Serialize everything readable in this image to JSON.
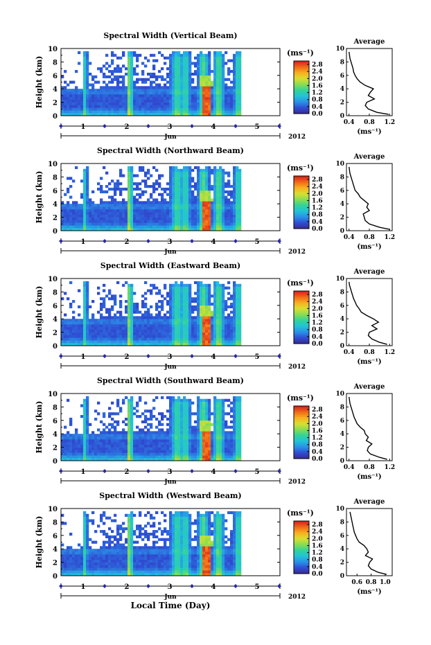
{
  "chart_data": [
    {
      "type": "heatmap",
      "title": "Spectral Width (Vertical Beam)",
      "ylabel": "Height (km)",
      "yticks": [
        "0",
        "2",
        "4",
        "6",
        "8",
        "10"
      ],
      "xticks": [
        "1",
        "2",
        "3",
        "4",
        "5"
      ],
      "month_label": "Jun",
      "year_label": "2012",
      "colorbar": {
        "unit": "(ms⁻¹)",
        "ticks": [
          "0.0",
          "0.4",
          "0.8",
          "1.2",
          "1.6",
          "2.0",
          "2.4",
          "2.8"
        ],
        "range": [
          0,
          3.0
        ]
      },
      "average": {
        "title": "Average",
        "xlabel": "(ms⁻¹)",
        "xticks": [
          "0.4",
          "0.8",
          "1.2"
        ],
        "xlim": [
          0.35,
          1.25
        ],
        "yticks": [
          "0",
          "2",
          "4",
          "6",
          "8",
          "10"
        ],
        "height": [
          0.2,
          0.5,
          1,
          1.5,
          2,
          2.5,
          3,
          3.5,
          4,
          4.5,
          5,
          5.5,
          6,
          6.5,
          7,
          7.5,
          8,
          8.5,
          9,
          9.5
        ],
        "width": [
          1.18,
          0.95,
          0.78,
          0.72,
          0.75,
          0.9,
          0.78,
          0.82,
          0.88,
          0.72,
          0.62,
          0.56,
          0.52,
          0.49,
          0.48,
          0.46,
          0.44,
          0.42,
          0.41,
          0.4
        ]
      }
    },
    {
      "type": "heatmap",
      "title": "Spectral Width (Northward Beam)",
      "ylabel": "Height (km)",
      "yticks": [
        "0",
        "2",
        "4",
        "6",
        "8",
        "10"
      ],
      "xticks": [
        "1",
        "2",
        "3",
        "4",
        "5"
      ],
      "month_label": "Jun",
      "year_label": "2012",
      "colorbar": {
        "unit": "(ms⁻¹)",
        "ticks": [
          "0.0",
          "0.4",
          "0.8",
          "1.2",
          "1.6",
          "2.0",
          "2.4",
          "2.8"
        ],
        "range": [
          0,
          3.0
        ]
      },
      "average": {
        "title": "Average",
        "xlabel": "(ms⁻¹)",
        "xticks": [
          "0.4",
          "0.8",
          "1.2"
        ],
        "xlim": [
          0.35,
          1.25
        ],
        "yticks": [
          "0",
          "2",
          "4",
          "6",
          "8",
          "10"
        ],
        "height": [
          0.2,
          0.5,
          1,
          1.5,
          2,
          2.5,
          3,
          3.5,
          4,
          4.5,
          5,
          5.5,
          6,
          6.5,
          7,
          7.5,
          8,
          8.5,
          9,
          9.5
        ],
        "width": [
          1.2,
          1.0,
          0.8,
          0.72,
          0.7,
          0.68,
          0.8,
          0.75,
          0.78,
          0.7,
          0.62,
          0.58,
          0.52,
          0.5,
          0.48,
          0.46,
          0.44,
          0.42,
          0.41,
          0.4
        ]
      }
    },
    {
      "type": "heatmap",
      "title": "Spectral Width (Eastward Beam)",
      "ylabel": "Height (km)",
      "yticks": [
        "0",
        "2",
        "4",
        "6",
        "8",
        "10"
      ],
      "xticks": [
        "1",
        "2",
        "3",
        "4",
        "5"
      ],
      "month_label": "Jun",
      "year_label": "2012",
      "colorbar": {
        "unit": "(ms⁻¹)",
        "ticks": [
          "0.0",
          "0.4",
          "0.8",
          "1.2",
          "1.6",
          "2.0",
          "2.4",
          "2.8"
        ],
        "range": [
          0,
          3.0
        ]
      },
      "average": {
        "title": "Average",
        "xlabel": "(ms⁻¹)",
        "xticks": [
          "0.4",
          "0.8",
          "1.2"
        ],
        "xlim": [
          0.35,
          1.25
        ],
        "yticks": [
          "0",
          "2",
          "4",
          "6",
          "8",
          "10"
        ],
        "height": [
          0.2,
          0.5,
          1,
          1.5,
          2,
          2.5,
          3,
          3.5,
          4,
          4.5,
          5,
          5.5,
          6,
          6.5,
          7,
          7.5,
          8,
          8.5,
          9,
          9.5
        ],
        "width": [
          1.15,
          1.0,
          0.85,
          0.78,
          0.8,
          0.95,
          0.85,
          0.98,
          0.88,
          0.75,
          0.64,
          0.6,
          0.55,
          0.52,
          0.49,
          0.47,
          0.45,
          0.43,
          0.41,
          0.4
        ]
      }
    },
    {
      "type": "heatmap",
      "title": "Spectral Width (Southward Beam)",
      "ylabel": "Height (km)",
      "yticks": [
        "0",
        "2",
        "4",
        "6",
        "8",
        "10"
      ],
      "xticks": [
        "1",
        "2",
        "3",
        "4",
        "5"
      ],
      "month_label": "Jun",
      "year_label": "2012",
      "colorbar": {
        "unit": "(ms⁻¹)",
        "ticks": [
          "0.0",
          "0.4",
          "0.8",
          "1.2",
          "1.6",
          "2.0",
          "2.4",
          "2.8"
        ],
        "range": [
          0,
          3.0
        ]
      },
      "average": {
        "title": "Average",
        "xlabel": "(ms⁻¹)",
        "xticks": [
          "0.4",
          "0.8",
          "1.2"
        ],
        "xlim": [
          0.35,
          1.25
        ],
        "yticks": [
          "0",
          "2",
          "4",
          "6",
          "8",
          "10"
        ],
        "height": [
          0.2,
          0.5,
          1,
          1.5,
          2,
          2.5,
          3,
          3.5,
          4,
          4.5,
          5,
          5.5,
          6,
          6.5,
          7,
          7.5,
          8,
          8.5,
          9,
          9.5
        ],
        "width": [
          1.15,
          1.0,
          0.82,
          0.76,
          0.78,
          0.85,
          0.74,
          0.78,
          0.72,
          0.7,
          0.62,
          0.56,
          0.53,
          0.5,
          0.48,
          0.46,
          0.44,
          0.42,
          0.41,
          0.4
        ]
      }
    },
    {
      "type": "heatmap",
      "title": "Spectral Width (Westward Beam)",
      "ylabel": "Height (km)",
      "yticks": [
        "0",
        "2",
        "4",
        "6",
        "8",
        "10"
      ],
      "xticks": [
        "1",
        "2",
        "3",
        "4",
        "5"
      ],
      "month_label": "Jun",
      "year_label": "2012",
      "xlabel": "Local Time (Day)",
      "colorbar": {
        "unit": "(ms⁻¹)",
        "ticks": [
          "0.0",
          "0.4",
          "0.8",
          "1.2",
          "1.6",
          "2.0",
          "2.4",
          "2.8"
        ],
        "range": [
          0,
          3.0
        ]
      },
      "average": {
        "title": "Average",
        "xlabel": "(ms⁻¹)",
        "xticks": [
          "0.6",
          "0.8",
          "1.0"
        ],
        "xlim": [
          0.45,
          1.1
        ],
        "yticks": [
          "0",
          "2",
          "4",
          "6",
          "8",
          "10"
        ],
        "height": [
          0.2,
          0.5,
          1,
          1.5,
          2,
          2.5,
          3,
          3.5,
          4,
          4.5,
          5,
          5.5,
          6,
          6.5,
          7,
          7.5,
          8,
          8.5,
          9,
          9.5
        ],
        "width": [
          1.02,
          0.9,
          0.8,
          0.76,
          0.78,
          0.82,
          0.72,
          0.76,
          0.74,
          0.7,
          0.63,
          0.6,
          0.58,
          0.56,
          0.55,
          0.54,
          0.53,
          0.52,
          0.51,
          0.5
        ]
      }
    }
  ],
  "colors": {
    "scale": [
      "#3a2a8c",
      "#2f4cd2",
      "#2a8fe8",
      "#22c3d8",
      "#32d39a",
      "#86dc55",
      "#d8e030",
      "#f8b020",
      "#f06a18",
      "#d82020"
    ]
  }
}
